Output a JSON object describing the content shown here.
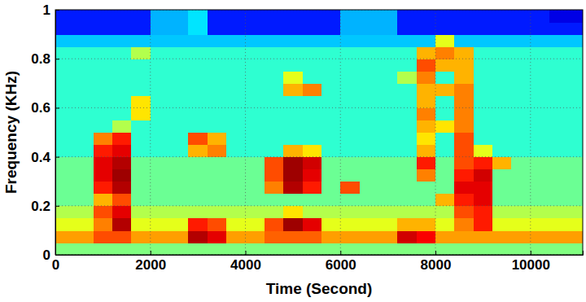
{
  "chart_data": {
    "type": "heatmap",
    "x_label": "Time (Second)",
    "y_label": "Frequency (KHz)",
    "xlim": [
      0,
      11100
    ],
    "ylim": [
      0,
      1
    ],
    "xticks": [
      0,
      2000,
      4000,
      6000,
      8000,
      10000
    ],
    "yticks": [
      0,
      0.2,
      0.4,
      0.6,
      0.8,
      1
    ],
    "grid": true,
    "zlim": [
      0,
      1
    ],
    "x_edges": [
      0,
      400,
      800,
      1200,
      1600,
      2000,
      2400,
      2800,
      3200,
      3600,
      4000,
      4400,
      4800,
      5200,
      5600,
      6000,
      6400,
      6800,
      7200,
      7600,
      8000,
      8400,
      8800,
      9200,
      9600,
      10000,
      10400,
      10800,
      11200
    ],
    "y_edges": [
      0,
      0.05,
      0.1,
      0.15,
      0.2,
      0.25,
      0.3,
      0.35,
      0.4,
      0.45,
      0.5,
      0.55,
      0.6,
      0.65,
      0.7,
      0.75,
      0.8,
      0.85,
      0.9,
      0.95,
      1
    ],
    "z": [
      [
        0.5,
        0.5,
        0.5,
        0.5,
        0.5,
        0.5,
        0.5,
        0.5,
        0.5,
        0.5,
        0.5,
        0.5,
        0.5,
        0.5,
        0.5,
        0.5,
        0.5,
        0.5,
        0.5,
        0.5,
        0.5,
        0.5,
        0.5,
        0.5,
        0.5,
        0.5,
        0.5,
        0.5
      ],
      [
        0.72,
        0.72,
        0.8,
        0.8,
        0.72,
        0.72,
        0.72,
        0.95,
        0.9,
        0.72,
        0.72,
        0.78,
        0.78,
        0.78,
        0.72,
        0.72,
        0.72,
        0.72,
        0.92,
        0.88,
        0.72,
        0.72,
        0.72,
        0.72,
        0.72,
        0.72,
        0.72,
        0.72
      ],
      [
        0.6,
        0.6,
        0.75,
        0.95,
        0.6,
        0.6,
        0.6,
        0.85,
        0.8,
        0.6,
        0.6,
        0.8,
        0.97,
        0.9,
        0.6,
        0.6,
        0.6,
        0.6,
        0.7,
        0.7,
        0.6,
        0.75,
        0.85,
        0.6,
        0.6,
        0.6,
        0.6,
        0.6
      ],
      [
        0.55,
        0.55,
        0.8,
        0.9,
        0.55,
        0.55,
        0.55,
        0.55,
        0.55,
        0.55,
        0.55,
        0.55,
        0.65,
        0.55,
        0.55,
        0.55,
        0.55,
        0.55,
        0.55,
        0.55,
        0.55,
        0.8,
        0.85,
        0.55,
        0.55,
        0.55,
        0.55,
        0.55
      ],
      [
        0.48,
        0.48,
        0.7,
        0.8,
        0.48,
        0.48,
        0.48,
        0.48,
        0.48,
        0.48,
        0.48,
        0.48,
        0.48,
        0.48,
        0.48,
        0.48,
        0.48,
        0.48,
        0.48,
        0.48,
        0.7,
        0.85,
        0.9,
        0.48,
        0.48,
        0.48,
        0.48,
        0.48
      ],
      [
        0.48,
        0.48,
        0.85,
        0.95,
        0.48,
        0.48,
        0.48,
        0.48,
        0.48,
        0.48,
        0.48,
        0.75,
        0.95,
        0.85,
        0.48,
        0.8,
        0.48,
        0.48,
        0.48,
        0.48,
        0.48,
        0.9,
        0.9,
        0.48,
        0.48,
        0.48,
        0.48,
        0.48
      ],
      [
        0.48,
        0.48,
        0.9,
        0.97,
        0.48,
        0.48,
        0.48,
        0.48,
        0.48,
        0.48,
        0.48,
        0.8,
        0.97,
        0.9,
        0.48,
        0.48,
        0.48,
        0.48,
        0.48,
        0.75,
        0.48,
        0.85,
        0.92,
        0.48,
        0.48,
        0.48,
        0.48,
        0.48
      ],
      [
        0.48,
        0.48,
        0.9,
        0.95,
        0.48,
        0.48,
        0.48,
        0.48,
        0.48,
        0.48,
        0.48,
        0.8,
        0.97,
        0.92,
        0.48,
        0.48,
        0.48,
        0.48,
        0.48,
        0.85,
        0.48,
        0.8,
        0.85,
        0.7,
        0.48,
        0.48,
        0.48,
        0.48
      ],
      [
        0.42,
        0.42,
        0.85,
        0.9,
        0.42,
        0.42,
        0.42,
        0.7,
        0.75,
        0.42,
        0.42,
        0.42,
        0.7,
        0.65,
        0.42,
        0.42,
        0.42,
        0.42,
        0.42,
        0.7,
        0.42,
        0.8,
        0.6,
        0.42,
        0.42,
        0.42,
        0.42,
        0.42
      ],
      [
        0.42,
        0.42,
        0.75,
        0.85,
        0.42,
        0.42,
        0.42,
        0.8,
        0.7,
        0.42,
        0.42,
        0.42,
        0.42,
        0.42,
        0.42,
        0.42,
        0.42,
        0.42,
        0.42,
        0.65,
        0.42,
        0.8,
        0.42,
        0.42,
        0.42,
        0.42,
        0.42,
        0.42
      ],
      [
        0.42,
        0.42,
        0.42,
        0.55,
        0.42,
        0.42,
        0.42,
        0.42,
        0.42,
        0.42,
        0.42,
        0.42,
        0.42,
        0.42,
        0.42,
        0.42,
        0.42,
        0.42,
        0.42,
        0.7,
        0.65,
        0.75,
        0.42,
        0.42,
        0.42,
        0.42,
        0.42,
        0.42
      ],
      [
        0.42,
        0.42,
        0.42,
        0.42,
        0.65,
        0.42,
        0.42,
        0.42,
        0.42,
        0.42,
        0.42,
        0.42,
        0.42,
        0.42,
        0.42,
        0.42,
        0.42,
        0.42,
        0.42,
        0.75,
        0.42,
        0.75,
        0.42,
        0.42,
        0.42,
        0.42,
        0.42,
        0.42
      ],
      [
        0.42,
        0.42,
        0.42,
        0.42,
        0.65,
        0.42,
        0.42,
        0.42,
        0.42,
        0.42,
        0.42,
        0.42,
        0.42,
        0.42,
        0.42,
        0.42,
        0.42,
        0.42,
        0.42,
        0.7,
        0.42,
        0.75,
        0.42,
        0.42,
        0.42,
        0.42,
        0.42,
        0.42
      ],
      [
        0.42,
        0.42,
        0.42,
        0.42,
        0.42,
        0.42,
        0.42,
        0.42,
        0.42,
        0.42,
        0.42,
        0.42,
        0.7,
        0.75,
        0.42,
        0.42,
        0.42,
        0.42,
        0.42,
        0.7,
        0.7,
        0.75,
        0.42,
        0.42,
        0.42,
        0.42,
        0.42,
        0.42
      ],
      [
        0.42,
        0.42,
        0.42,
        0.42,
        0.42,
        0.42,
        0.42,
        0.42,
        0.42,
        0.42,
        0.42,
        0.42,
        0.6,
        0.42,
        0.42,
        0.42,
        0.42,
        0.42,
        0.55,
        0.75,
        0.42,
        0.7,
        0.42,
        0.42,
        0.42,
        0.42,
        0.42,
        0.42
      ],
      [
        0.42,
        0.42,
        0.42,
        0.42,
        0.42,
        0.42,
        0.42,
        0.42,
        0.42,
        0.42,
        0.42,
        0.42,
        0.42,
        0.42,
        0.42,
        0.42,
        0.42,
        0.42,
        0.42,
        0.8,
        0.7,
        0.7,
        0.42,
        0.42,
        0.42,
        0.42,
        0.42,
        0.42
      ],
      [
        0.42,
        0.42,
        0.42,
        0.42,
        0.55,
        0.42,
        0.42,
        0.42,
        0.42,
        0.42,
        0.42,
        0.42,
        0.42,
        0.42,
        0.42,
        0.42,
        0.42,
        0.42,
        0.42,
        0.7,
        0.75,
        0.7,
        0.42,
        0.42,
        0.42,
        0.42,
        0.42,
        0.42
      ],
      [
        0.32,
        0.32,
        0.32,
        0.32,
        0.32,
        0.32,
        0.32,
        0.32,
        0.32,
        0.32,
        0.32,
        0.32,
        0.32,
        0.32,
        0.32,
        0.32,
        0.32,
        0.32,
        0.32,
        0.32,
        0.6,
        0.32,
        0.32,
        0.32,
        0.32,
        0.32,
        0.32,
        0.32
      ],
      [
        0.15,
        0.15,
        0.15,
        0.15,
        0.15,
        0.3,
        0.3,
        0.35,
        0.15,
        0.15,
        0.15,
        0.15,
        0.15,
        0.15,
        0.15,
        0.3,
        0.3,
        0.3,
        0.15,
        0.15,
        0.15,
        0.15,
        0.15,
        0.15,
        0.15,
        0.15,
        0.15,
        0.15
      ],
      [
        0.15,
        0.15,
        0.15,
        0.15,
        0.15,
        0.3,
        0.3,
        0.35,
        0.15,
        0.15,
        0.15,
        0.15,
        0.15,
        0.15,
        0.15,
        0.3,
        0.3,
        0.3,
        0.15,
        0.15,
        0.15,
        0.15,
        0.15,
        0.15,
        0.15,
        0.15,
        0.1,
        0.1
      ]
    ]
  }
}
